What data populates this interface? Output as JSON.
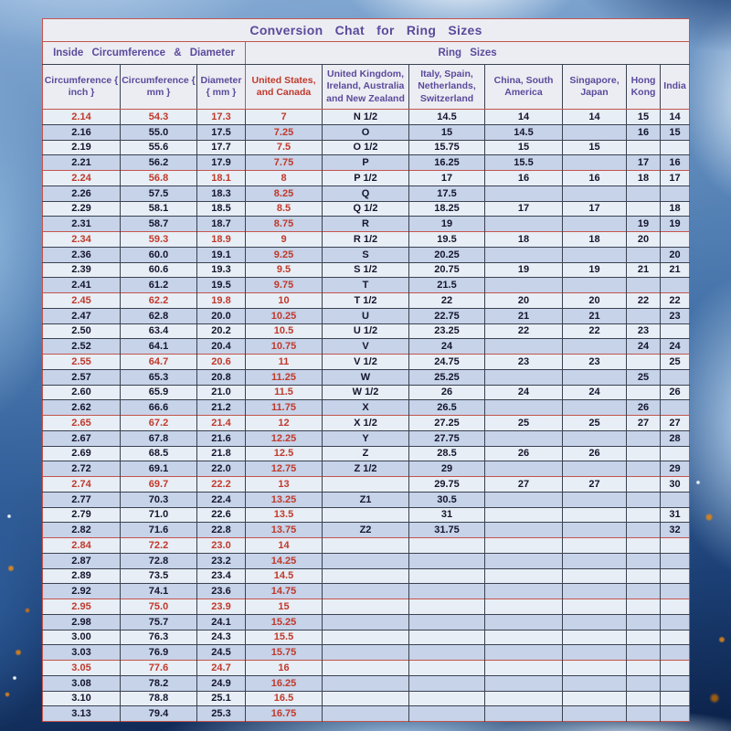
{
  "title": "Conversion Chat for Ring Sizes",
  "group_headers": {
    "left": "Inside Circumference & Diameter",
    "right": "Ring Sizes"
  },
  "colors": {
    "title_purple": "#5b4a9b",
    "text_navy": "#15152e",
    "text_red": "#c0392b",
    "border_red": "#c4544c",
    "border_dark": "#3a4150",
    "row_light": "#e8eef5",
    "row_dark": "#c6d3e9",
    "header_bg": "#ecedf3"
  },
  "chart_data": {
    "type": "table",
    "title": "Conversion Chat for Ring Sizes",
    "columns": [
      "Circumference { inch }",
      "Circumference { mm }",
      "Diameter { mm }",
      "United States, and Canada",
      "United Kingdom, Ireland, Australia and New Zealand",
      "Italy, Spain, Netherlands, Switzerland",
      "China, South America",
      "Singapore, Japan",
      "Hong Kong",
      "India"
    ],
    "highlight_rows": [
      0,
      4,
      8,
      12,
      16,
      20,
      24,
      28,
      32,
      36
    ],
    "rows": [
      [
        "2.14",
        "54.3",
        "17.3",
        "7",
        "N 1/2",
        "14.5",
        "14",
        "14",
        "15",
        "14"
      ],
      [
        "2.16",
        "55.0",
        "17.5",
        "7.25",
        "O",
        "15",
        "14.5",
        "",
        "16",
        "15"
      ],
      [
        "2.19",
        "55.6",
        "17.7",
        "7.5",
        "O 1/2",
        "15.75",
        "15",
        "15",
        "",
        ""
      ],
      [
        "2.21",
        "56.2",
        "17.9",
        "7.75",
        "P",
        "16.25",
        "15.5",
        "",
        "17",
        "16"
      ],
      [
        "2.24",
        "56.8",
        "18.1",
        "8",
        "P 1/2",
        "17",
        "16",
        "16",
        "18",
        "17"
      ],
      [
        "2.26",
        "57.5",
        "18.3",
        "8.25",
        "Q",
        "17.5",
        "",
        "",
        "",
        ""
      ],
      [
        "2.29",
        "58.1",
        "18.5",
        "8.5",
        "Q 1/2",
        "18.25",
        "17",
        "17",
        "",
        "18"
      ],
      [
        "2.31",
        "58.7",
        "18.7",
        "8.75",
        "R",
        "19",
        "",
        "",
        "19",
        "19"
      ],
      [
        "2.34",
        "59.3",
        "18.9",
        "9",
        "R 1/2",
        "19.5",
        "18",
        "18",
        "20",
        ""
      ],
      [
        "2.36",
        "60.0",
        "19.1",
        "9.25",
        "S",
        "20.25",
        "",
        "",
        "",
        "20"
      ],
      [
        "2.39",
        "60.6",
        "19.3",
        "9.5",
        "S 1/2",
        "20.75",
        "19",
        "19",
        "21",
        "21"
      ],
      [
        "2.41",
        "61.2",
        "19.5",
        "9.75",
        "T",
        "21.5",
        "",
        "",
        "",
        ""
      ],
      [
        "2.45",
        "62.2",
        "19.8",
        "10",
        "T 1/2",
        "22",
        "20",
        "20",
        "22",
        "22"
      ],
      [
        "2.47",
        "62.8",
        "20.0",
        "10.25",
        "U",
        "22.75",
        "21",
        "21",
        "",
        "23"
      ],
      [
        "2.50",
        "63.4",
        "20.2",
        "10.5",
        "U 1/2",
        "23.25",
        "22",
        "22",
        "23",
        ""
      ],
      [
        "2.52",
        "64.1",
        "20.4",
        "10.75",
        "V",
        "24",
        "",
        "",
        "24",
        "24"
      ],
      [
        "2.55",
        "64.7",
        "20.6",
        "11",
        "V 1/2",
        "24.75",
        "23",
        "23",
        "",
        "25"
      ],
      [
        "2.57",
        "65.3",
        "20.8",
        "11.25",
        "W",
        "25.25",
        "",
        "",
        "25",
        ""
      ],
      [
        "2.60",
        "65.9",
        "21.0",
        "11.5",
        "W 1/2",
        "26",
        "24",
        "24",
        "",
        "26"
      ],
      [
        "2.62",
        "66.6",
        "21.2",
        "11.75",
        "X",
        "26.5",
        "",
        "",
        "26",
        ""
      ],
      [
        "2.65",
        "67.2",
        "21.4",
        "12",
        "X 1/2",
        "27.25",
        "25",
        "25",
        "27",
        "27"
      ],
      [
        "2.67",
        "67.8",
        "21.6",
        "12.25",
        "Y",
        "27.75",
        "",
        "",
        "",
        "28"
      ],
      [
        "2.69",
        "68.5",
        "21.8",
        "12.5",
        "Z",
        "28.5",
        "26",
        "26",
        "",
        ""
      ],
      [
        "2.72",
        "69.1",
        "22.0",
        "12.75",
        "Z 1/2",
        "29",
        "",
        "",
        "",
        "29"
      ],
      [
        "2.74",
        "69.7",
        "22.2",
        "13",
        "",
        "29.75",
        "27",
        "27",
        "",
        "30"
      ],
      [
        "2.77",
        "70.3",
        "22.4",
        "13.25",
        "Z1",
        "30.5",
        "",
        "",
        "",
        ""
      ],
      [
        "2.79",
        "71.0",
        "22.6",
        "13.5",
        "",
        "31",
        "",
        "",
        "",
        "31"
      ],
      [
        "2.82",
        "71.6",
        "22.8",
        "13.75",
        "Z2",
        "31.75",
        "",
        "",
        "",
        "32"
      ],
      [
        "2.84",
        "72.2",
        "23.0",
        "14",
        "",
        "",
        "",
        "",
        "",
        ""
      ],
      [
        "2.87",
        "72.8",
        "23.2",
        "14.25",
        "",
        "",
        "",
        "",
        "",
        ""
      ],
      [
        "2.89",
        "73.5",
        "23.4",
        "14.5",
        "",
        "",
        "",
        "",
        "",
        ""
      ],
      [
        "2.92",
        "74.1",
        "23.6",
        "14.75",
        "",
        "",
        "",
        "",
        "",
        ""
      ],
      [
        "2.95",
        "75.0",
        "23.9",
        "15",
        "",
        "",
        "",
        "",
        "",
        ""
      ],
      [
        "2.98",
        "75.7",
        "24.1",
        "15.25",
        "",
        "",
        "",
        "",
        "",
        ""
      ],
      [
        "3.00",
        "76.3",
        "24.3",
        "15.5",
        "",
        "",
        "",
        "",
        "",
        ""
      ],
      [
        "3.03",
        "76.9",
        "24.5",
        "15.75",
        "",
        "",
        "",
        "",
        "",
        ""
      ],
      [
        "3.05",
        "77.6",
        "24.7",
        "16",
        "",
        "",
        "",
        "",
        "",
        ""
      ],
      [
        "3.08",
        "78.2",
        "24.9",
        "16.25",
        "",
        "",
        "",
        "",
        "",
        ""
      ],
      [
        "3.10",
        "78.8",
        "25.1",
        "16.5",
        "",
        "",
        "",
        "",
        "",
        ""
      ],
      [
        "3.13",
        "79.4",
        "25.3",
        "16.75",
        "",
        "",
        "",
        "",
        "",
        ""
      ]
    ]
  }
}
